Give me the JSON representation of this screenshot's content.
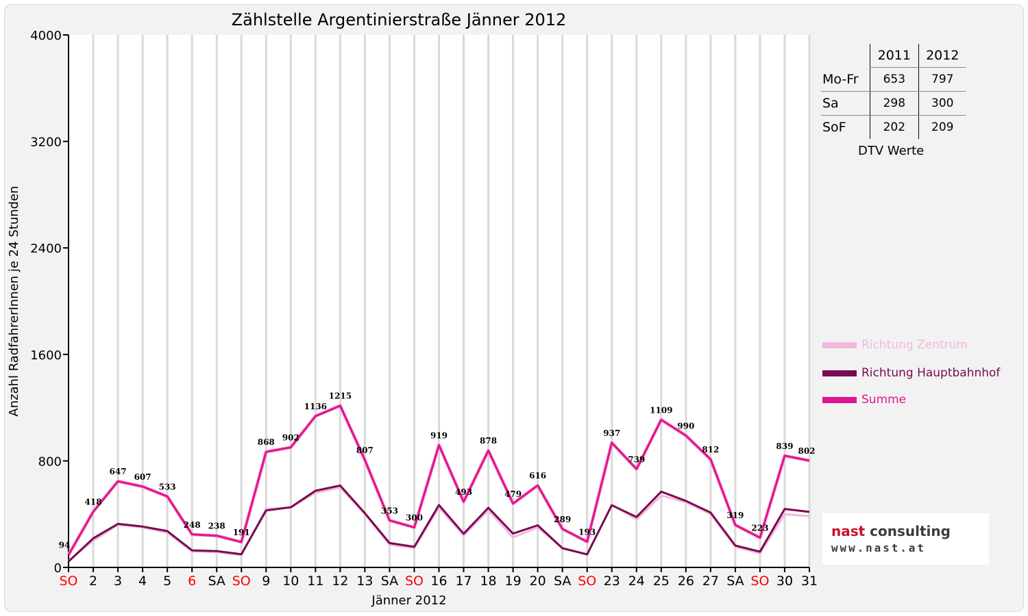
{
  "chart_data": {
    "type": "line",
    "title": "Zählstelle Argentinierstraße Jänner 2012",
    "xlabel": "Jänner 2012",
    "ylabel": "Anzahl RadfahrerInnen je 24 Stunden",
    "ylim": [
      0,
      4000
    ],
    "yticks": [
      "0",
      "800",
      "1600",
      "2400",
      "3200",
      "4000"
    ],
    "categories": [
      "SO",
      "2",
      "3",
      "4",
      "5",
      "6",
      "SA",
      "SO",
      "9",
      "10",
      "11",
      "12",
      "13",
      "SA",
      "SO",
      "16",
      "17",
      "18",
      "19",
      "20",
      "SA",
      "SO",
      "23",
      "24",
      "25",
      "26",
      "27",
      "SA",
      "SO",
      "30",
      "31"
    ],
    "red_categories": [
      0,
      5,
      7,
      14,
      21,
      28
    ],
    "grid": true,
    "legend_position": "right",
    "series": [
      {
        "name": "Richtung Zentrum",
        "color": "#f0b8dc",
        "values": [
          50,
          200,
          320,
          300,
          260,
          120,
          115,
          92,
          440,
          450,
          560,
          600,
          400,
          170,
          145,
          450,
          240,
          430,
          225,
          300,
          145,
          95,
          470,
          360,
          540,
          490,
          400,
          155,
          105,
          400,
          385
        ]
      },
      {
        "name": "Richtung Hauptbahnhof",
        "color": "#7a0a50",
        "values": [
          44,
          218,
          327,
          307,
          273,
          128,
          123,
          99,
          428,
          452,
          576,
          615,
          407,
          183,
          155,
          469,
          253,
          448,
          254,
          316,
          144,
          98,
          467,
          379,
          569,
          500,
          412,
          164,
          118,
          439,
          417
        ]
      },
      {
        "name": "Summe",
        "color": "#e0148c",
        "values": [
          94,
          418,
          647,
          607,
          533,
          248,
          238,
          191,
          868,
          902,
          1136,
          1215,
          807,
          353,
          300,
          919,
          493,
          878,
          479,
          616,
          289,
          193,
          937,
          739,
          1109,
          990,
          812,
          319,
          223,
          839,
          802
        ]
      }
    ],
    "data_labels": [
      "94",
      "418",
      "647",
      "607",
      "533",
      "248",
      "238",
      "191",
      "868",
      "902",
      "1136",
      "1215",
      "807",
      "353",
      "300",
      "919",
      "493",
      "878",
      "479",
      "616",
      "289",
      "193",
      "937",
      "739",
      "1109",
      "990",
      "812",
      "319",
      "223",
      "839",
      "802"
    ]
  },
  "dtv_table": {
    "headers": [
      "2011",
      "2012"
    ],
    "rows": [
      {
        "label": "Mo-Fr",
        "v2011": "653",
        "v2012": "797"
      },
      {
        "label": "Sa",
        "v2011": "298",
        "v2012": "300"
      },
      {
        "label": "SoF",
        "v2011": "202",
        "v2012": "209"
      }
    ],
    "caption": "DTV Werte"
  },
  "logo": {
    "name_part1": "nast",
    "name_part2": " consulting",
    "url": "www.nast.at"
  },
  "colors": {
    "weekday_text": "#000000",
    "holiday_text": "#ff0000"
  }
}
